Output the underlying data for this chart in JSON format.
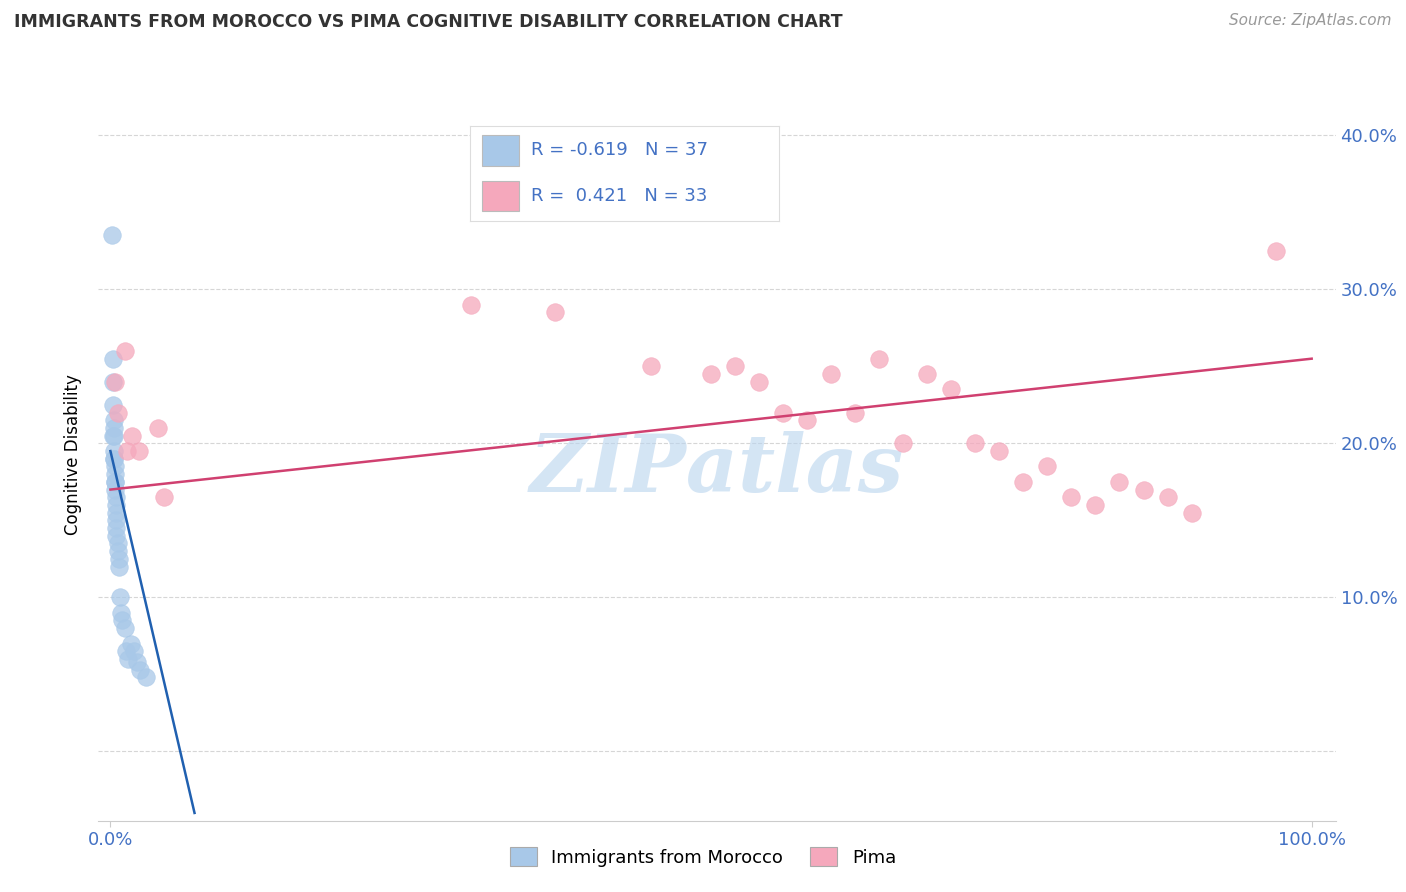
{
  "title": "IMMIGRANTS FROM MOROCCO VS PIMA COGNITIVE DISABILITY CORRELATION CHART",
  "source": "Source: ZipAtlas.com",
  "ylabel": "Cognitive Disability",
  "legend_label1": "Immigrants from Morocco",
  "legend_label2": "Pima",
  "r1": -0.619,
  "n1": 37,
  "r2": 0.421,
  "n2": 33,
  "color_blue": "#a8c8e8",
  "color_pink": "#f5a8bc",
  "line_blue": "#2060b0",
  "line_pink": "#d04070",
  "watermark_color": "#b8d4ee",
  "blue_points_x": [
    0.001,
    0.002,
    0.002,
    0.002,
    0.002,
    0.003,
    0.003,
    0.003,
    0.003,
    0.003,
    0.003,
    0.004,
    0.004,
    0.004,
    0.004,
    0.004,
    0.005,
    0.005,
    0.005,
    0.005,
    0.005,
    0.005,
    0.006,
    0.006,
    0.007,
    0.007,
    0.008,
    0.009,
    0.01,
    0.012,
    0.013,
    0.015,
    0.017,
    0.02,
    0.022,
    0.025,
    0.03
  ],
  "blue_points_y": [
    0.335,
    0.255,
    0.24,
    0.225,
    0.205,
    0.215,
    0.21,
    0.205,
    0.195,
    0.19,
    0.19,
    0.185,
    0.18,
    0.175,
    0.175,
    0.17,
    0.165,
    0.16,
    0.155,
    0.15,
    0.145,
    0.14,
    0.135,
    0.13,
    0.125,
    0.12,
    0.1,
    0.09,
    0.085,
    0.08,
    0.065,
    0.06,
    0.07,
    0.065,
    0.058,
    0.053,
    0.048
  ],
  "pink_points_x": [
    0.004,
    0.006,
    0.012,
    0.014,
    0.018,
    0.024,
    0.04,
    0.045,
    0.3,
    0.37,
    0.45,
    0.5,
    0.52,
    0.54,
    0.56,
    0.58,
    0.6,
    0.62,
    0.64,
    0.66,
    0.68,
    0.7,
    0.72,
    0.74,
    0.76,
    0.78,
    0.8,
    0.82,
    0.84,
    0.86,
    0.88,
    0.9,
    0.97
  ],
  "pink_points_y": [
    0.24,
    0.22,
    0.26,
    0.195,
    0.205,
    0.195,
    0.21,
    0.165,
    0.29,
    0.285,
    0.25,
    0.245,
    0.25,
    0.24,
    0.22,
    0.215,
    0.245,
    0.22,
    0.255,
    0.2,
    0.245,
    0.235,
    0.2,
    0.195,
    0.175,
    0.185,
    0.165,
    0.16,
    0.175,
    0.17,
    0.165,
    0.155,
    0.325
  ],
  "blue_line_x": [
    0.0,
    0.07
  ],
  "blue_line_y": [
    0.195,
    -0.04
  ],
  "pink_line_x": [
    0.0,
    1.0
  ],
  "pink_line_y": [
    0.17,
    0.255
  ],
  "xlim": [
    -0.01,
    1.02
  ],
  "ylim": [
    -0.045,
    0.43
  ],
  "yticks": [
    0.0,
    0.1,
    0.2,
    0.3,
    0.4
  ],
  "ytick_labels": [
    "",
    "10.0%",
    "20.0%",
    "30.0%",
    "40.0%"
  ]
}
